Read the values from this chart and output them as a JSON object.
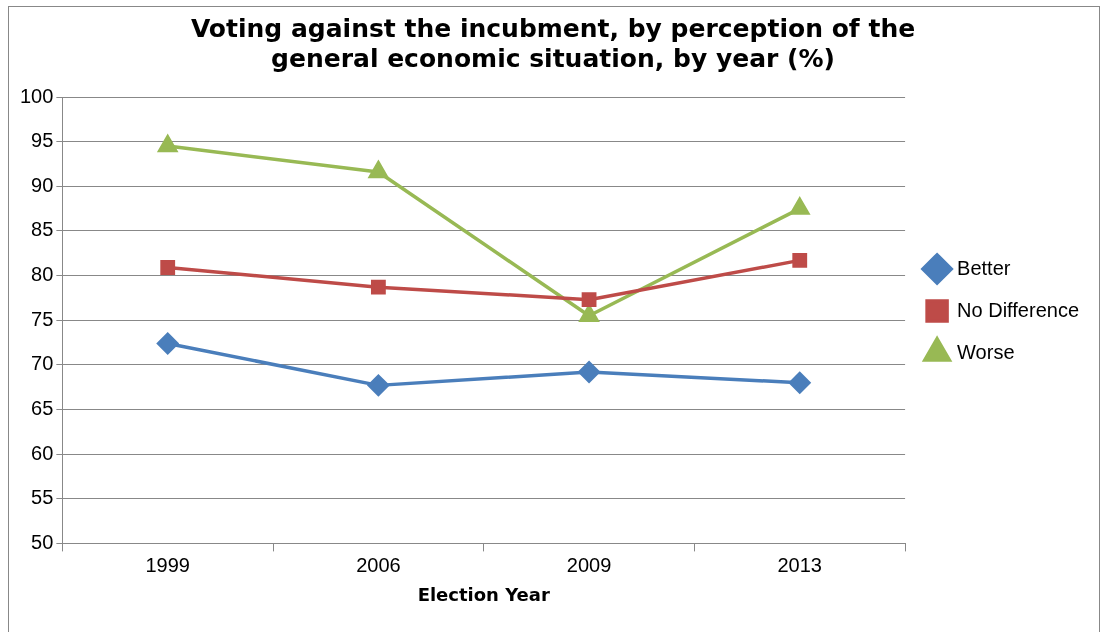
{
  "chart_data": {
    "type": "line",
    "title": "Voting against the incubment, by perception of the general economic situation, by year (%)",
    "xlabel": "Election Year",
    "categories": [
      "1999",
      "2006",
      "2009",
      "2013"
    ],
    "series": [
      {
        "name": "Better",
        "color": "#4a7ebb",
        "marker": "diamond",
        "values": [
          72.4,
          67.7,
          69.2,
          68.0
        ]
      },
      {
        "name": "No Difference",
        "color": "#be4b48",
        "marker": "square",
        "values": [
          80.9,
          78.7,
          77.3,
          81.7
        ]
      },
      {
        "name": "Worse",
        "color": "#98b954",
        "marker": "triangle",
        "values": [
          94.5,
          91.6,
          75.5,
          87.5
        ]
      }
    ],
    "ylim": [
      50,
      100
    ],
    "yticks": [
      50,
      55,
      60,
      65,
      70,
      75,
      80,
      85,
      90,
      95,
      100
    ],
    "grid": "y",
    "legend": "right",
    "line_style": "solid"
  }
}
